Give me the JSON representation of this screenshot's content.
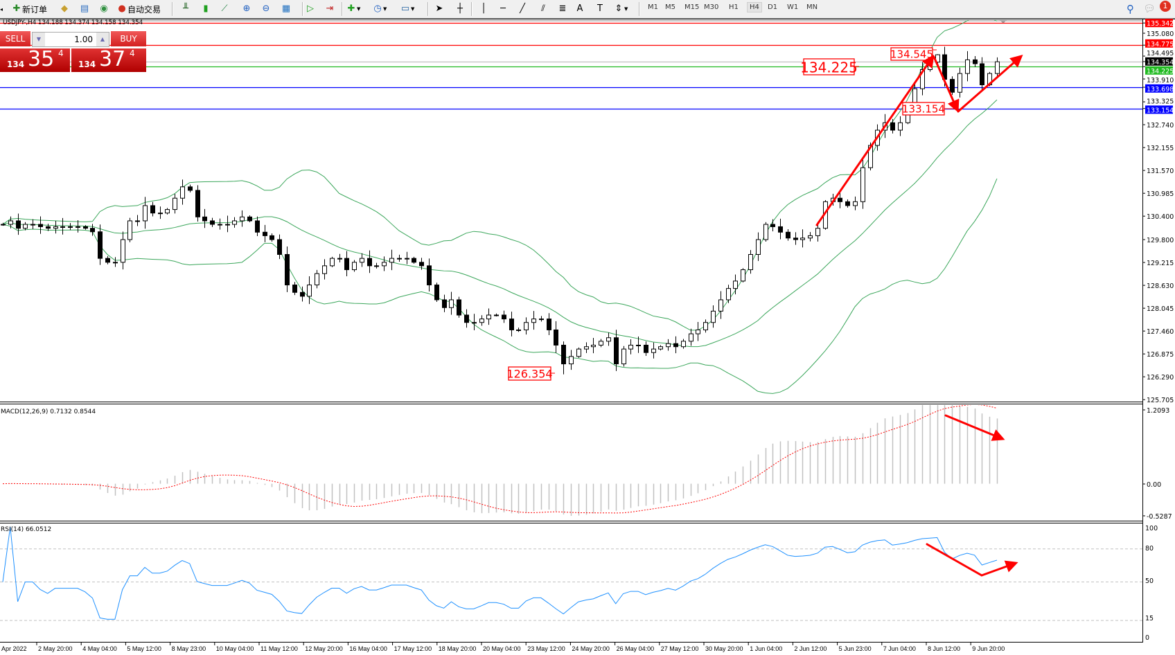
{
  "toolbar": {
    "new_order_label": "新订单",
    "auto_trading_label": "自动交易",
    "timeframes": [
      "M1",
      "M5",
      "M15",
      "M30",
      "H1",
      "H4",
      "D1",
      "W1",
      "MN"
    ],
    "active_timeframe": "H4",
    "notification_count": "1"
  },
  "chart_header": "USDJPY-,H4  134.188 134.374 134.158 134.354",
  "trade_panel": {
    "sell_label": "SELL",
    "buy_label": "BUY",
    "lot_value": "1.00",
    "sell_price": {
      "prefix": "134",
      "big": "35",
      "sup": "4"
    },
    "buy_price": {
      "prefix": "134",
      "big": "37",
      "sup": "4"
    }
  },
  "colors": {
    "up_line": "#ff0000",
    "support": "#0000ff",
    "bid": "#c0c0c0",
    "entry": "#22bb22",
    "bands": "#3aa65a",
    "macd_signal": "#ff0000",
    "macd_hist": "#c0c0c0",
    "rsi": "#1e90ff"
  },
  "chart_data": {
    "type": "candlestick",
    "symbol": "USDJPY-",
    "timeframe": "H4",
    "closes": [
      130.19,
      130.28,
      130.09,
      130.19,
      130.19,
      130.13,
      130.09,
      130.13,
      130.13,
      130.13,
      130.13,
      130.09,
      130.0,
      129.32,
      129.22,
      129.22,
      129.8,
      130.28,
      130.28,
      130.67,
      130.48,
      130.48,
      130.57,
      130.86,
      131.15,
      131.06,
      130.38,
      130.28,
      130.19,
      130.19,
      130.19,
      130.28,
      130.38,
      130.28,
      129.99,
      129.9,
      129.8,
      129.42,
      128.64,
      128.45,
      128.35,
      128.64,
      128.93,
      129.13,
      129.32,
      129.32,
      129.03,
      129.22,
      129.32,
      129.13,
      129.13,
      129.22,
      129.32,
      129.32,
      129.32,
      129.22,
      129.13,
      128.64,
      128.26,
      128.06,
      128.26,
      127.87,
      127.68,
      127.68,
      127.77,
      127.87,
      127.87,
      127.77,
      127.49,
      127.49,
      127.68,
      127.77,
      127.77,
      127.49,
      127.1,
      126.62,
      126.81,
      127.0,
      127.06,
      127.1,
      127.2,
      127.29,
      126.62,
      127.0,
      127.1,
      127.1,
      126.91,
      127.0,
      127.06,
      127.14,
      127.06,
      127.2,
      127.39,
      127.49,
      127.68,
      127.97,
      128.26,
      128.55,
      128.74,
      129.03,
      129.42,
      129.8,
      130.19,
      130.13,
      129.99,
      129.84,
      129.8,
      129.84,
      129.9,
      130.09,
      130.77,
      130.86,
      130.77,
      130.67,
      130.77,
      131.64,
      132.21,
      132.6,
      132.79,
      132.6,
      132.79,
      133.08,
      133.66,
      134.15,
      134.34,
      134.53,
      133.9,
      133.57,
      134.05,
      134.4,
      134.3,
      133.76,
      134.05,
      134.35
    ],
    "period_low": 126.354,
    "period_high": 134.545,
    "y_ticks": [
      "135.080",
      "134.495",
      "133.910",
      "133.325",
      "132.740",
      "132.155",
      "131.570",
      "130.985",
      "130.400",
      "129.800",
      "129.215",
      "128.630",
      "128.045",
      "127.460",
      "126.875",
      "126.290",
      "125.705"
    ],
    "x_ticks": [
      "Apr 2022",
      "2 May 20:00",
      "4 May 04:00",
      "5 May 12:00",
      "8 May 23:00",
      "10 May 04:00",
      "11 May 12:00",
      "12 May 20:00",
      "16 May 04:00",
      "17 May 12:00",
      "18 May 20:00",
      "20 May 04:00",
      "23 May 12:00",
      "24 May 20:00",
      "26 May 04:00",
      "27 May 12:00",
      "30 May 20:00",
      "1 Jun 04:00",
      "2 Jun 12:00",
      "5 Jun 23:00",
      "7 Jun 04:00",
      "8 Jun 12:00",
      "9 Jun 20:00"
    ],
    "levels": [
      {
        "price": "135.342",
        "color": "#ff0000",
        "label_bg": "#ff0000"
      },
      {
        "price": "134.775",
        "color": "#ff0000",
        "label_bg": "#ff0000"
      },
      {
        "price": "134.354",
        "color": "#c0c0c0",
        "label_bg": "#000000"
      },
      {
        "price": "134.225",
        "color": "#22bb22",
        "label_bg": "#22bb22"
      },
      {
        "price": "133.698",
        "color": "#0000ff",
        "label_bg": "#0000ff"
      },
      {
        "price": "133.154",
        "color": "#0000ff",
        "label_bg": "#0000ff"
      }
    ],
    "annotations": [
      "134.225",
      "134.545",
      "133.154",
      "126.354"
    ],
    "indicators": {
      "bollinger": {
        "period": 20,
        "deviation": 2
      },
      "macd": {
        "label": "MACD(12,26,9) 0.7132 0.8544",
        "ymax": "1.2093",
        "zero": "0.00",
        "ymin": "-0.5287"
      },
      "rsi": {
        "label": "RSI(14) 66.0512",
        "ticks": [
          "100",
          "80",
          "50",
          "15",
          "0"
        ],
        "levels": [
          80,
          50,
          15
        ]
      }
    }
  }
}
